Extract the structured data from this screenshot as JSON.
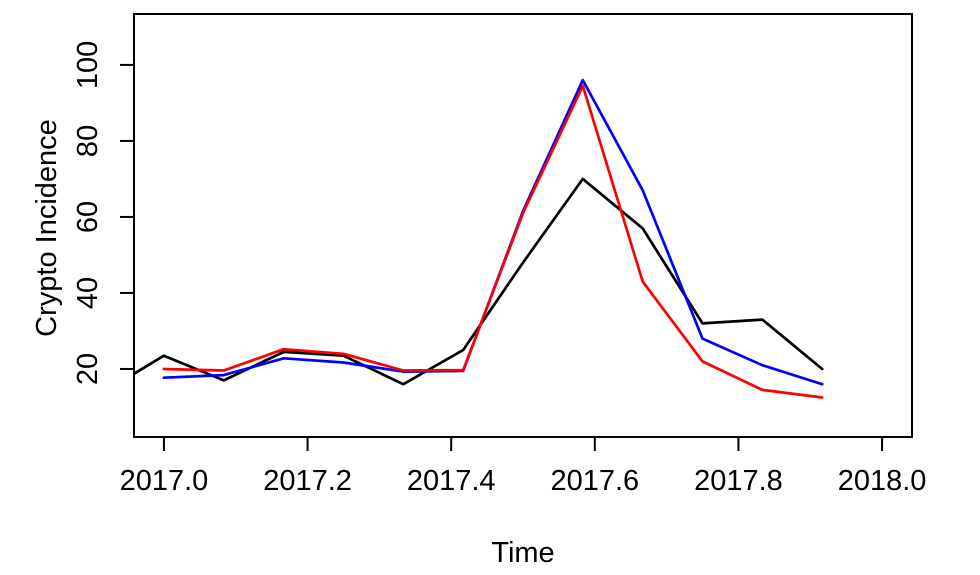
{
  "chart_data": {
    "type": "line",
    "title": "",
    "xlabel": "Time",
    "ylabel": "Crypto Incidence",
    "grid": false,
    "legend": false,
    "x_axis": {
      "min": 2016.9583,
      "max": 2018.0417,
      "ticks": [
        2017.0,
        2017.2,
        2017.4,
        2017.6,
        2017.8,
        2018.0
      ],
      "tick_labels": [
        "2017.0",
        "2017.2",
        "2017.4",
        "2017.6",
        "2017.8",
        "2018.0"
      ]
    },
    "y_axis": {
      "min": 2.1,
      "max": 113.4,
      "ticks": [
        20,
        40,
        60,
        80,
        100
      ],
      "tick_labels": [
        "20",
        "40",
        "60",
        "80",
        "100"
      ]
    },
    "series": [
      {
        "name": "observed-black",
        "color": "#000000",
        "x": [
          2016.9167,
          2017.0,
          2017.0833,
          2017.1667,
          2017.25,
          2017.3333,
          2017.4167,
          2017.5,
          2017.5833,
          2017.6667,
          2017.75,
          2017.8333,
          2017.9167
        ],
        "values": [
          14,
          23.5,
          17,
          24.5,
          23.5,
          16,
          25,
          48,
          70,
          57,
          32,
          33,
          20
        ]
      },
      {
        "name": "fitted-blue",
        "color": "#0000FF",
        "x": [
          2017.0,
          2017.0833,
          2017.1667,
          2017.25,
          2017.3333,
          2017.4167,
          2017.5,
          2017.5833,
          2017.6667,
          2017.75,
          2017.8333,
          2017.9167
        ],
        "values": [
          17.7,
          18.4,
          22.8,
          21.7,
          19.3,
          19.5,
          61.5,
          96,
          67,
          28,
          21,
          16
        ]
      },
      {
        "name": "fitted-red",
        "color": "#FF0000",
        "x": [
          2017.0,
          2017.0833,
          2017.1667,
          2017.25,
          2017.3333,
          2017.4167,
          2017.5,
          2017.5833,
          2017.6667,
          2017.75,
          2017.8333,
          2017.9167
        ],
        "values": [
          20,
          19.6,
          25.2,
          24,
          19.6,
          19.7,
          61,
          94.5,
          43,
          22,
          14.5,
          12.5
        ]
      }
    ]
  }
}
